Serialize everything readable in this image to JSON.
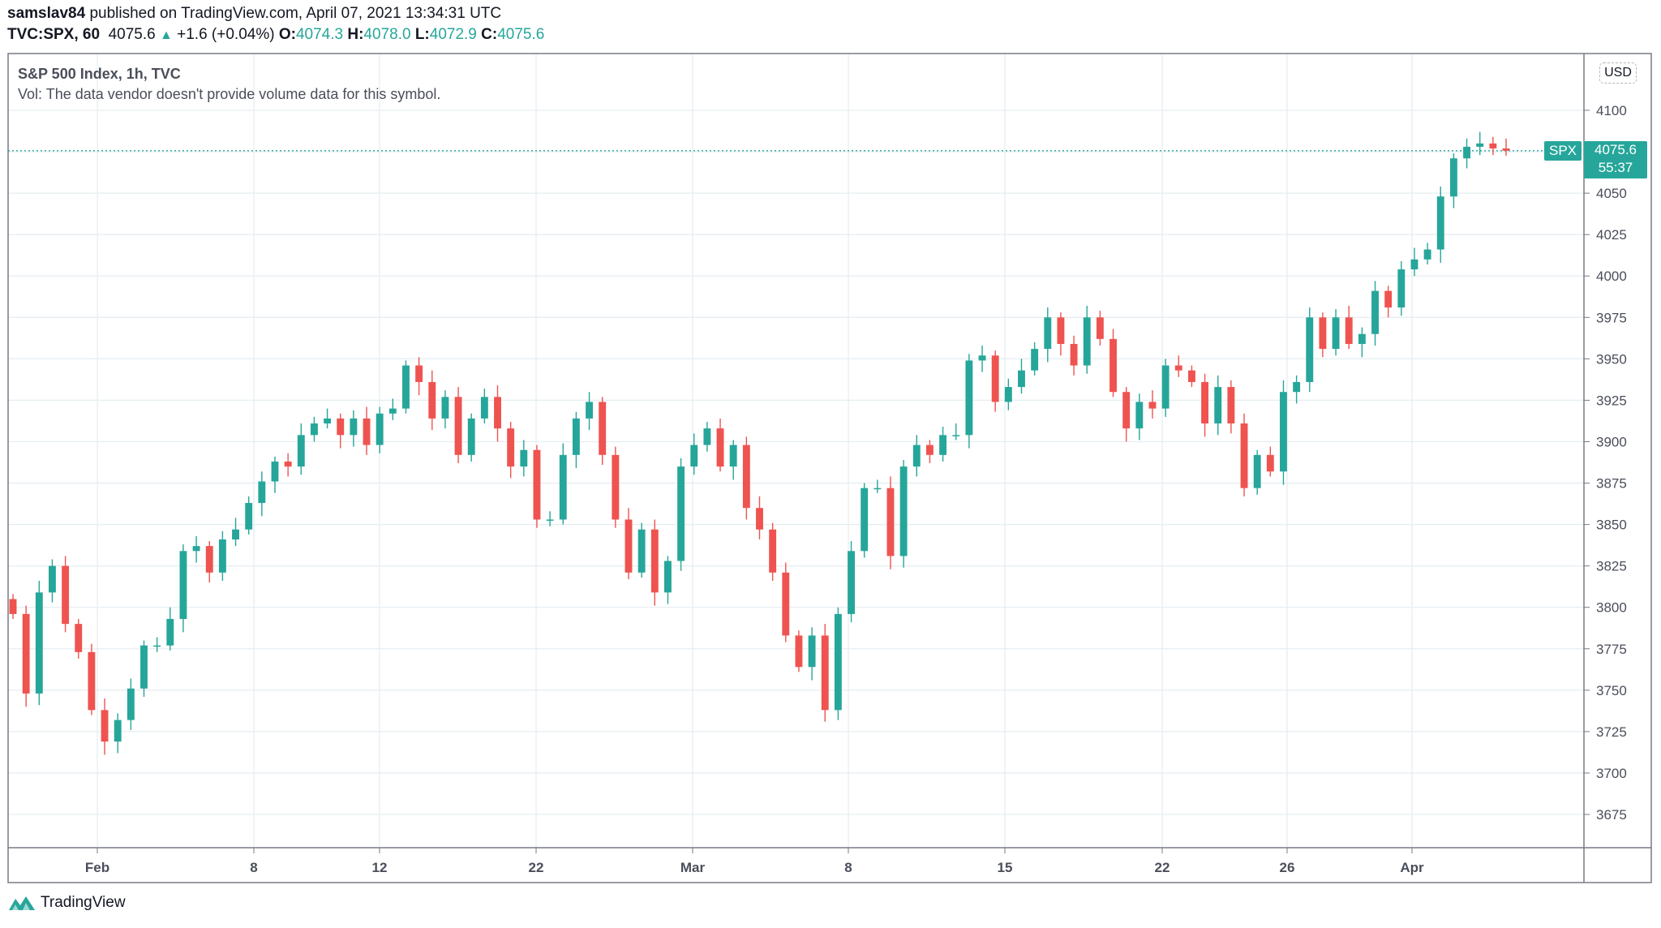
{
  "header": {
    "user": "samslav84",
    "published": "published on TradingView.com, April 07, 2021 13:34:31 UTC",
    "symbol": "TVC:SPX, 60",
    "last": "4075.6",
    "change": "+1.6 (+0.04%)",
    "o_label": "O:",
    "o": "4074.3",
    "h_label": "H:",
    "h": "4078.0",
    "l_label": "L:",
    "l": "4072.9",
    "c_label": "C:",
    "c": "4075.6"
  },
  "legend": {
    "title": "S&P 500 Index, 1h, TVC",
    "vol": "Vol: The data vendor doesn't provide volume data for this symbol."
  },
  "price_axis": {
    "currency": "USD",
    "symbol_label": "SPX",
    "last_price": "4075.6",
    "countdown": "55:37"
  },
  "footer": {
    "brand": "TradingView"
  },
  "colors": {
    "up": "#26a69a",
    "down": "#ef5350",
    "grid": "#e6eef2"
  },
  "chart_data": {
    "type": "candlestick",
    "title": "S&P 500 Index, 1h, TVC",
    "ylim": [
      3660,
      4120
    ],
    "yticks": [
      4100,
      4075,
      4050,
      4025,
      4000,
      3975,
      3950,
      3925,
      3900,
      3875,
      3850,
      3825,
      3800,
      3775,
      3750,
      3725,
      3700,
      3675
    ],
    "xticks": [
      "Feb",
      "8",
      "12",
      "22",
      "Mar",
      "8",
      "15",
      "22",
      "26",
      "Apr"
    ],
    "open0": 3805,
    "close": [
      3796,
      3748,
      3809,
      3825,
      3790,
      3773,
      3738,
      3719,
      3732,
      3751,
      3777,
      3777,
      3793,
      3834,
      3837,
      3821,
      3841,
      3847,
      3863,
      3876,
      3888,
      3885,
      3904,
      3911,
      3914,
      3904,
      3914,
      3898,
      3917,
      3920,
      3946,
      3936,
      3914,
      3927,
      3892,
      3914,
      3927,
      3908,
      3885,
      3895,
      3853,
      3853,
      3892,
      3914,
      3924,
      3892,
      3853,
      3821,
      3847,
      3809,
      3828,
      3885,
      3898,
      3908,
      3885,
      3898,
      3860,
      3847,
      3821,
      3783,
      3764,
      3783,
      3738,
      3796,
      3834,
      3872,
      3872,
      3831,
      3885,
      3898,
      3892,
      3904,
      3904,
      3949,
      3952,
      3924,
      3933,
      3943,
      3956,
      3975,
      3959,
      3946,
      3975,
      3962,
      3930,
      3908,
      3924,
      3920,
      3946,
      3943,
      3936,
      3911,
      3933,
      3911,
      3872,
      3892,
      3882,
      3930,
      3936,
      3975,
      3956,
      3975,
      3959,
      3965,
      3991,
      3981,
      4004,
      4010,
      4016,
      4048,
      4071,
      4078,
      4080,
      4077,
      4075.6
    ]
  }
}
